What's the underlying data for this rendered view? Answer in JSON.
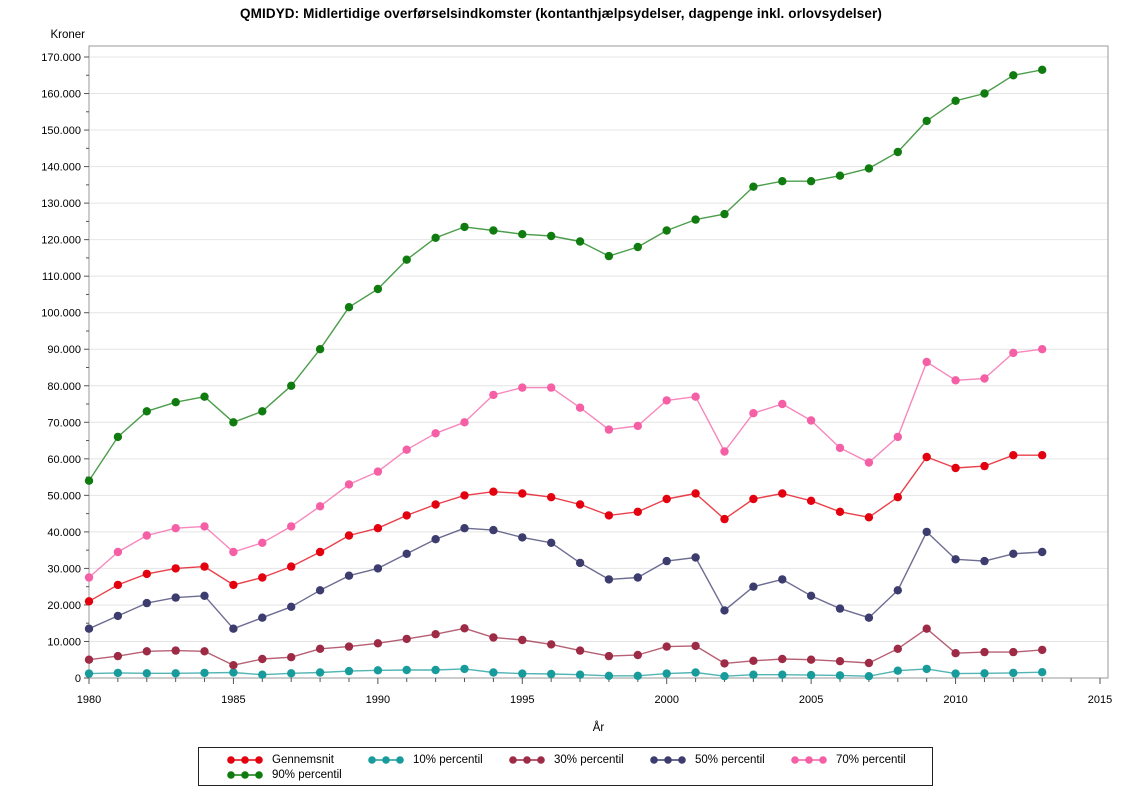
{
  "title": "QMIDYD: Midlertidige overførselsindkomster (kontanthjælpsydelser, dagpenge inkl. orlovsydelser)",
  "chart_data": {
    "type": "line",
    "title": "QMIDYD: Midlertidige overførselsindkomster (kontanthjælpsydelser, dagpenge inkl. orlovsydelser)",
    "xlabel": "År",
    "ylabel": "Kroner",
    "xlim": [
      1980,
      2015
    ],
    "ylim": [
      0,
      170000
    ],
    "grid": "horizontal",
    "legend_position": "bottom",
    "x_tick_labels": [
      "1980",
      "1985",
      "1990",
      "1995",
      "2000",
      "2005",
      "2010",
      "2015"
    ],
    "x_tick_step": 5,
    "x_minor_step": 1,
    "y_tick_labels": [
      "0",
      "10.000",
      "20.000",
      "30.000",
      "40.000",
      "50.000",
      "60.000",
      "70.000",
      "80.000",
      "90.000",
      "100.000",
      "110.000",
      "120.000",
      "130.000",
      "140.000",
      "150.000",
      "160.000",
      "170.000"
    ],
    "y_tick_step": 10000,
    "y_minor_step": 5000,
    "x": [
      1980,
      1981,
      1982,
      1983,
      1984,
      1985,
      1986,
      1987,
      1988,
      1989,
      1990,
      1991,
      1992,
      1993,
      1994,
      1995,
      1996,
      1997,
      1998,
      1999,
      2000,
      2001,
      2002,
      2003,
      2004,
      2005,
      2006,
      2007,
      2008,
      2009,
      2010,
      2011,
      2012,
      2013
    ],
    "series": [
      {
        "name": "Gennemsnit",
        "color": "#e3000f",
        "values": [
          21000,
          25500,
          28500,
          30000,
          30500,
          25500,
          27500,
          30500,
          34500,
          39000,
          41000,
          44500,
          47500,
          50000,
          51000,
          50500,
          49500,
          47500,
          44500,
          45500,
          49000,
          50500,
          43500,
          49000,
          50500,
          48500,
          45500,
          44000,
          49500,
          60500,
          57500,
          58000,
          61000,
          61000
        ]
      },
      {
        "name": "10% percentil",
        "color": "#189b9b",
        "values": [
          1200,
          1400,
          1300,
          1300,
          1400,
          1500,
          900,
          1300,
          1500,
          1900,
          2100,
          2200,
          2200,
          2500,
          1500,
          1200,
          1100,
          900,
          600,
          600,
          1200,
          1500,
          500,
          900,
          900,
          800,
          700,
          500,
          2000,
          2500,
          1200,
          1300,
          1400,
          1600
        ]
      },
      {
        "name": "30% percentil",
        "color": "#9e2b46",
        "values": [
          5000,
          6000,
          7300,
          7500,
          7300,
          3500,
          5200,
          5700,
          8000,
          8600,
          9500,
          10700,
          12000,
          13600,
          11100,
          10400,
          9200,
          7500,
          6000,
          6300,
          8600,
          8800,
          4000,
          4700,
          5200,
          5000,
          4600,
          4100,
          8000,
          13500,
          6800,
          7100,
          7100,
          7700
        ]
      },
      {
        "name": "50% percentil",
        "color": "#3c3c6e",
        "values": [
          13500,
          17000,
          20500,
          22000,
          22500,
          13500,
          16500,
          19500,
          24000,
          28000,
          30000,
          34000,
          38000,
          41000,
          40500,
          38500,
          37000,
          31500,
          27000,
          27500,
          32000,
          33000,
          18500,
          25000,
          27000,
          22500,
          19000,
          16500,
          24000,
          40000,
          32500,
          32000,
          34000,
          34500
        ]
      },
      {
        "name": "70% percentil",
        "color": "#f45fa5",
        "values": [
          27500,
          34500,
          39000,
          41000,
          41500,
          34500,
          37000,
          41500,
          47000,
          53000,
          56500,
          62500,
          67000,
          70000,
          77500,
          79500,
          79500,
          74000,
          68000,
          69000,
          76000,
          77000,
          62000,
          72500,
          75000,
          70500,
          63000,
          59000,
          66000,
          86500,
          81500,
          82000,
          89000,
          90000
        ]
      },
      {
        "name": "90% percentil",
        "color": "#107c10",
        "values": [
          54000,
          66000,
          73000,
          75500,
          77000,
          70000,
          73000,
          80000,
          90000,
          101500,
          106500,
          114500,
          120500,
          123500,
          122500,
          121500,
          121000,
          119500,
          115500,
          118000,
          122500,
          125500,
          127000,
          134500,
          136000,
          136000,
          137500,
          139500,
          144000,
          152500,
          158000,
          160000,
          165000,
          166500
        ]
      }
    ],
    "legend_rows": [
      [
        0,
        1,
        2,
        3,
        4
      ],
      [
        5
      ]
    ],
    "colors": {
      "grid": "#e4e4e4",
      "frame": "#9a9a9a",
      "tick": "#555555",
      "text": "#000000"
    }
  }
}
